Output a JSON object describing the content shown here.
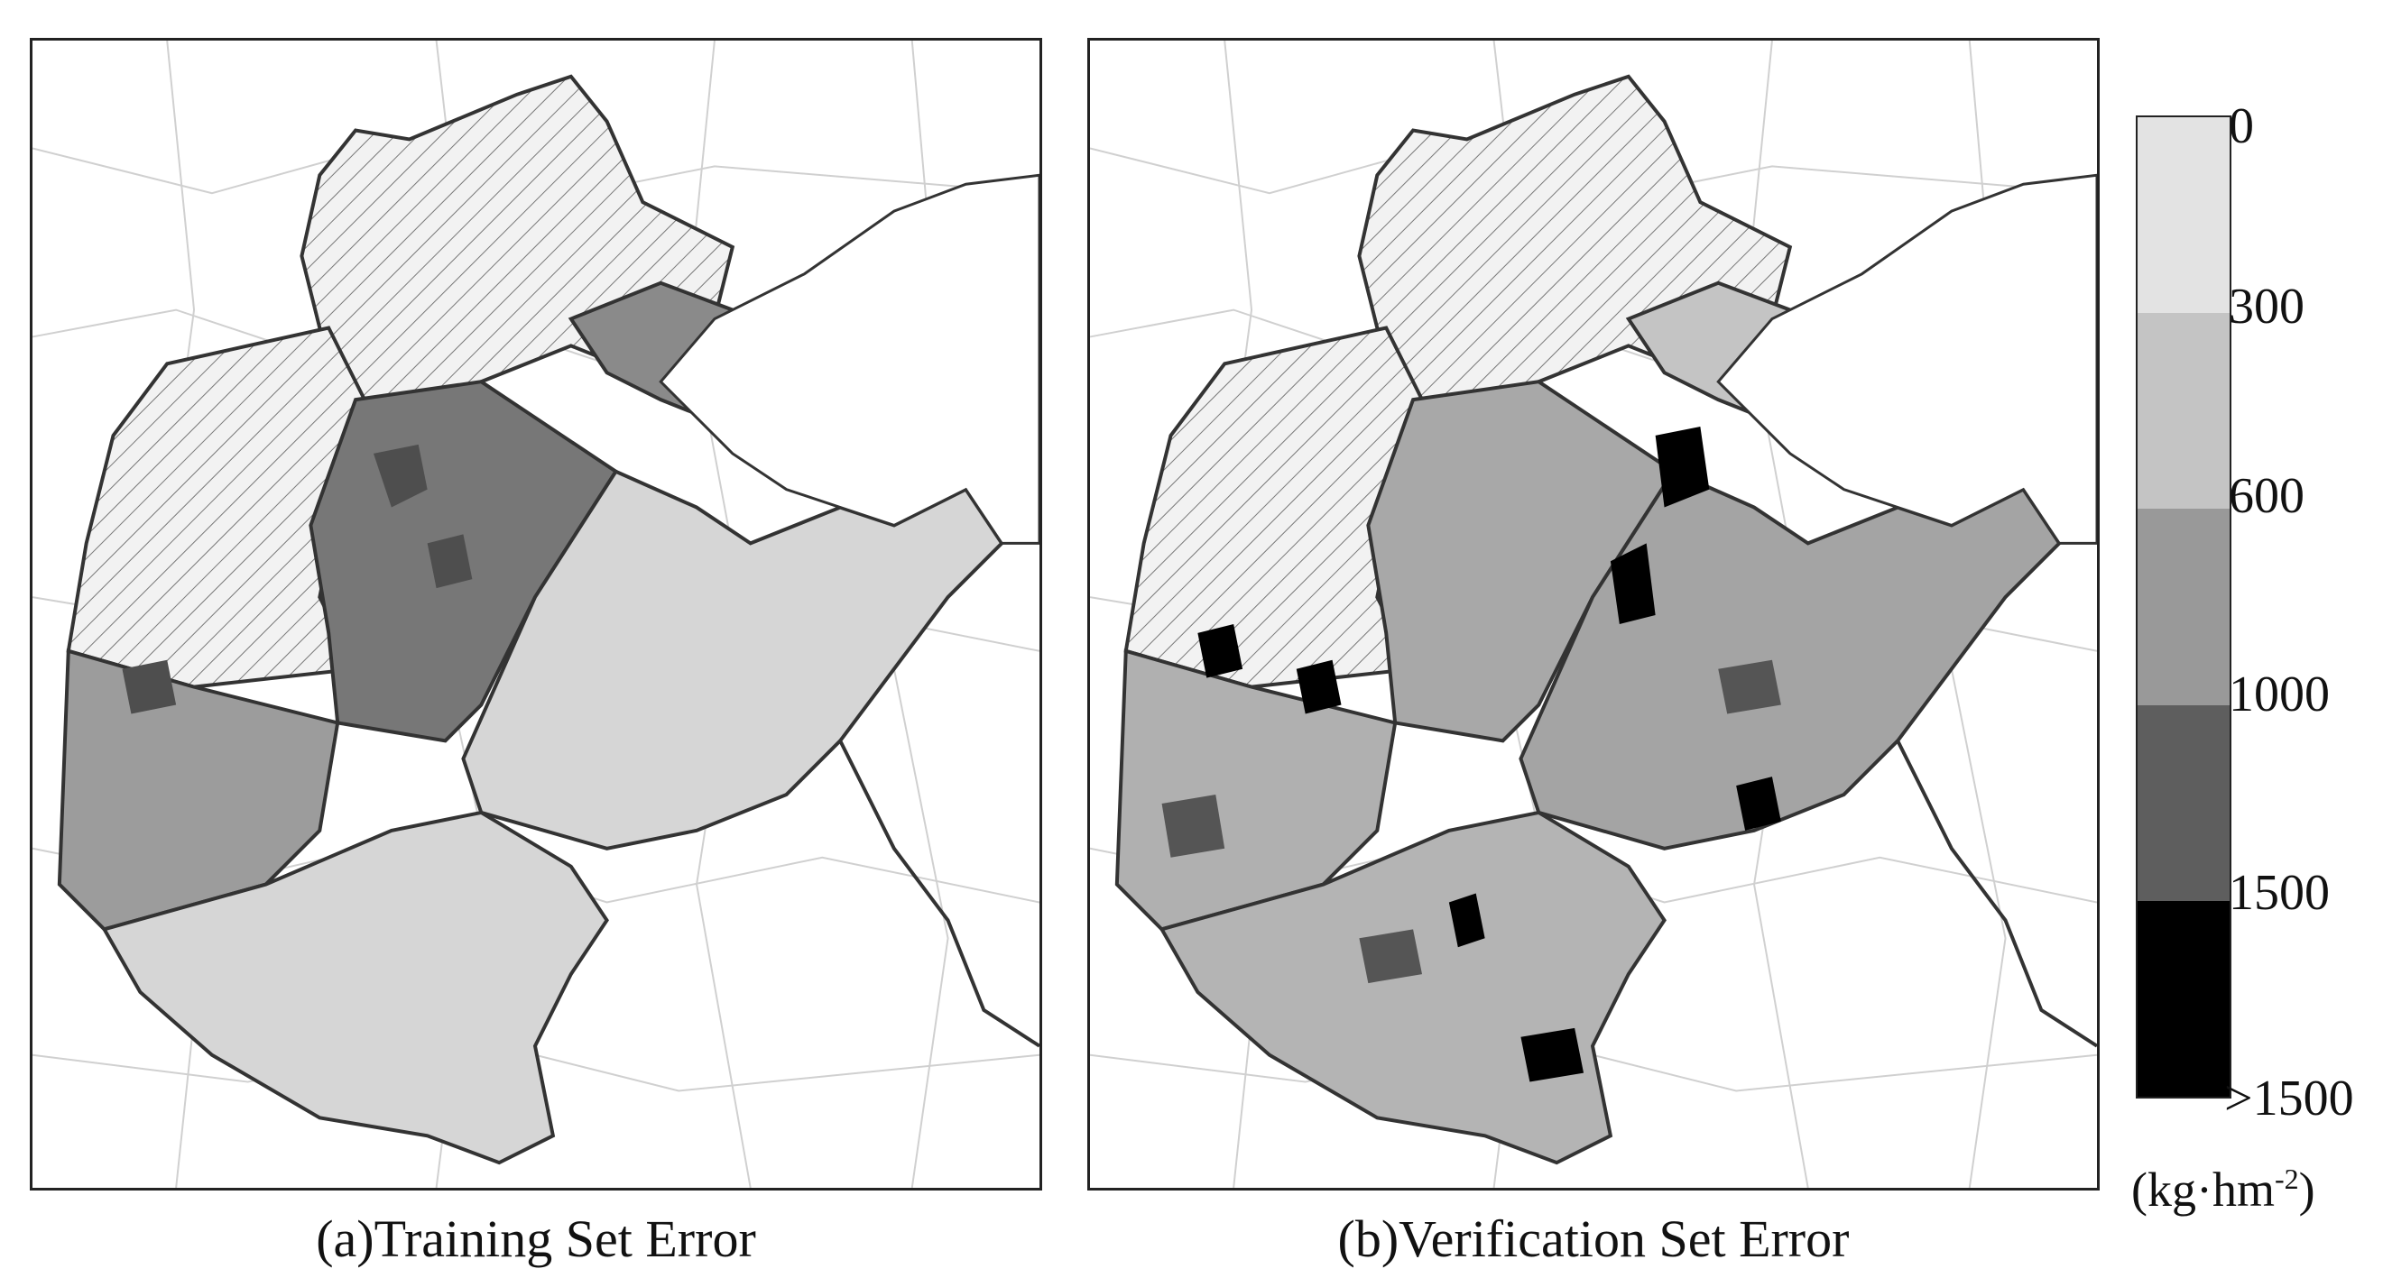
{
  "panels": [
    {
      "id": "a",
      "caption": "(a)Training Set Error",
      "regions": [
        {
          "name": "north-region",
          "category": "none"
        },
        {
          "name": "northeast-region",
          "category": "600-1000"
        },
        {
          "name": "west-central-region",
          "category": "600-1000"
        },
        {
          "name": "west-region",
          "category": "mixed-300-1000"
        },
        {
          "name": "east-peninsula-region",
          "category": "300-600"
        },
        {
          "name": "south-region",
          "category": "300-600"
        }
      ]
    },
    {
      "id": "b",
      "caption": "(b)Verification Set Error",
      "regions": [
        {
          "name": "north-region",
          "category": "none"
        },
        {
          "name": "northeast-region",
          "category": "300-600"
        },
        {
          "name": "west-central-region",
          "category": "300-1000"
        },
        {
          "name": "west-region",
          "category": "mixed-0->1500"
        },
        {
          "name": "east-peninsula-region",
          "category": "mixed-0->1500"
        },
        {
          "name": "south-region",
          "category": "mixed-0->1500"
        }
      ]
    }
  ],
  "legend": {
    "title_unit_main": "(kg·hm",
    "title_unit_sup": "-2",
    "title_unit_end": ")",
    "labels": [
      "0",
      "300",
      "600",
      "1000",
      "1500",
      ">1500"
    ],
    "colors": [
      "#e3e3e3",
      "#c4c4c4",
      "#999999",
      "#5e5e5e",
      "#303030",
      "#000000"
    ]
  }
}
